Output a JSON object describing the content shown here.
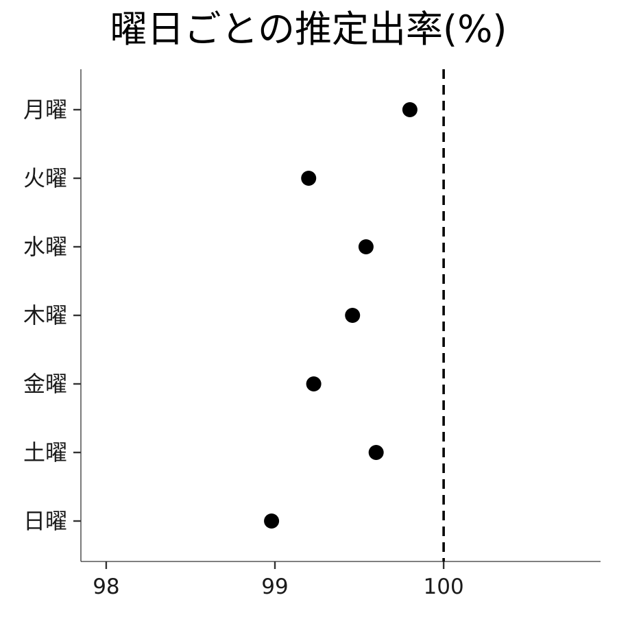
{
  "chart_data": {
    "type": "scatter",
    "title": "曜日ごとの推定出率(%)",
    "xlabel": "",
    "ylabel": "",
    "categories": [
      "月曜",
      "火曜",
      "水曜",
      "木曜",
      "金曜",
      "土曜",
      "日曜"
    ],
    "values": [
      99.8,
      99.2,
      99.54,
      99.46,
      99.23,
      99.6,
      98.98
    ],
    "xlim": [
      97.85,
      100.93
    ],
    "xticks": [
      98,
      99,
      100
    ],
    "xtick_labels": [
      "98",
      "99",
      "100"
    ],
    "reference_line": {
      "x": 100,
      "style": "dashed"
    },
    "grid": false,
    "legend": "none",
    "point_color": "#000000"
  }
}
